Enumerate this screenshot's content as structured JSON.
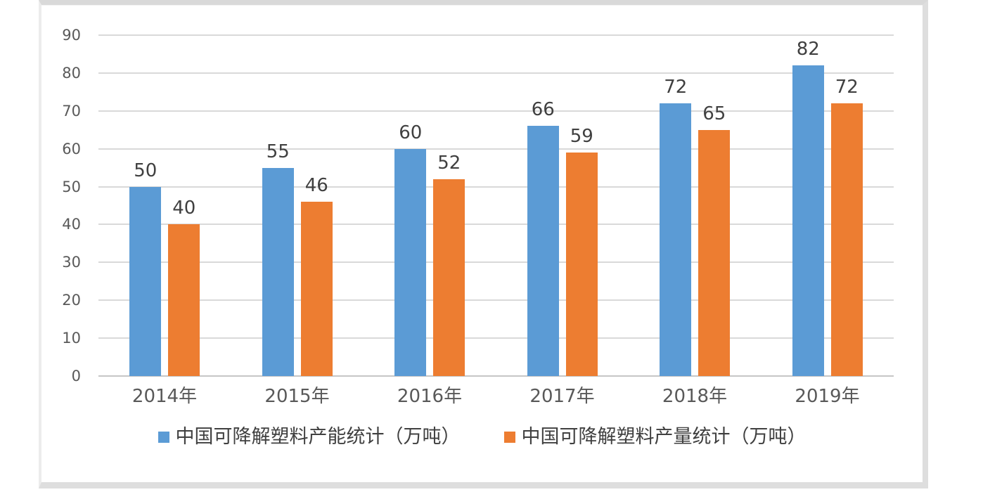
{
  "chart_data": {
    "type": "bar",
    "title": "",
    "categories": [
      "2014年",
      "2015年",
      "2016年",
      "2017年",
      "2018年",
      "2019年"
    ],
    "series": [
      {
        "name": "中国可降解塑料产能统计（万吨）",
        "color": "#5B9BD5",
        "values": [
          50,
          55,
          60,
          66,
          72,
          82
        ]
      },
      {
        "name": "中国可降解塑料产量统计（万吨）",
        "color": "#ED7D31",
        "values": [
          40,
          46,
          52,
          59,
          65,
          72
        ]
      }
    ],
    "ylim": [
      0,
      90
    ],
    "yticks": [
      90,
      80,
      70,
      60,
      50,
      40,
      30,
      20,
      10,
      0
    ],
    "grid": true,
    "legend_position": "bottom",
    "data_labels": true,
    "gridline_color": "#D9D9D9",
    "zero_axis_color": "#C6C6C6",
    "tick_label_color": "#595959",
    "data_label_color": "#404040",
    "panel_border_color": "#DEDEDE",
    "background_color": "#FFFFFF"
  }
}
